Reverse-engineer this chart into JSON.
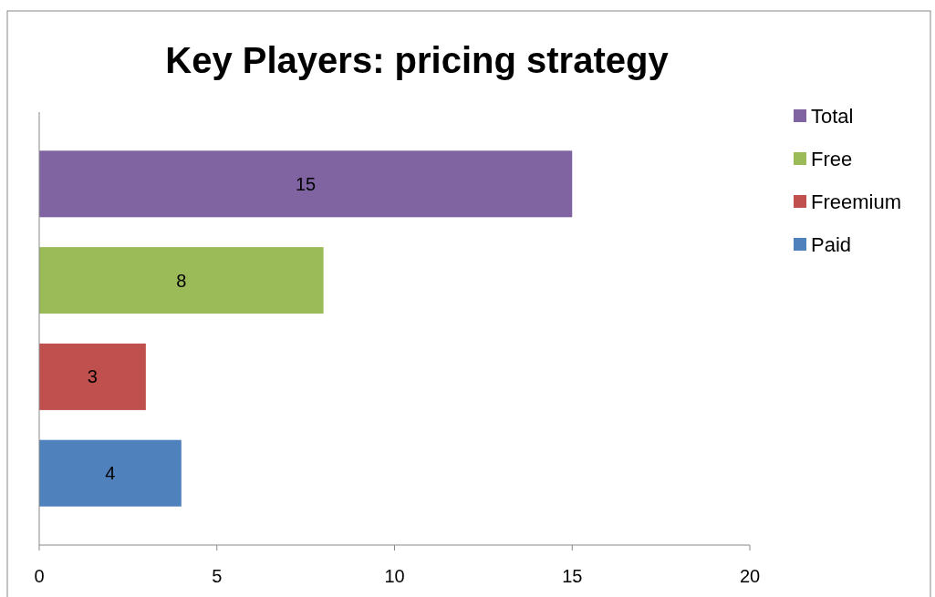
{
  "chart_data": {
    "type": "bar",
    "orientation": "horizontal",
    "title": "Key Players: pricing strategy",
    "categories": [
      null
    ],
    "series": [
      {
        "name": "Total",
        "color": "#8064a2",
        "values": [
          15
        ]
      },
      {
        "name": "Free",
        "color": "#9bbb59",
        "values": [
          8
        ]
      },
      {
        "name": "Freemium",
        "color": "#c0504d",
        "values": [
          3
        ]
      },
      {
        "name": "Paid",
        "color": "#4f81bd",
        "values": [
          4
        ]
      }
    ],
    "xlim": [
      0,
      20
    ],
    "xticks": [
      0,
      5,
      10,
      15,
      20
    ],
    "grid": false,
    "legend": "right",
    "data_labels": true
  }
}
